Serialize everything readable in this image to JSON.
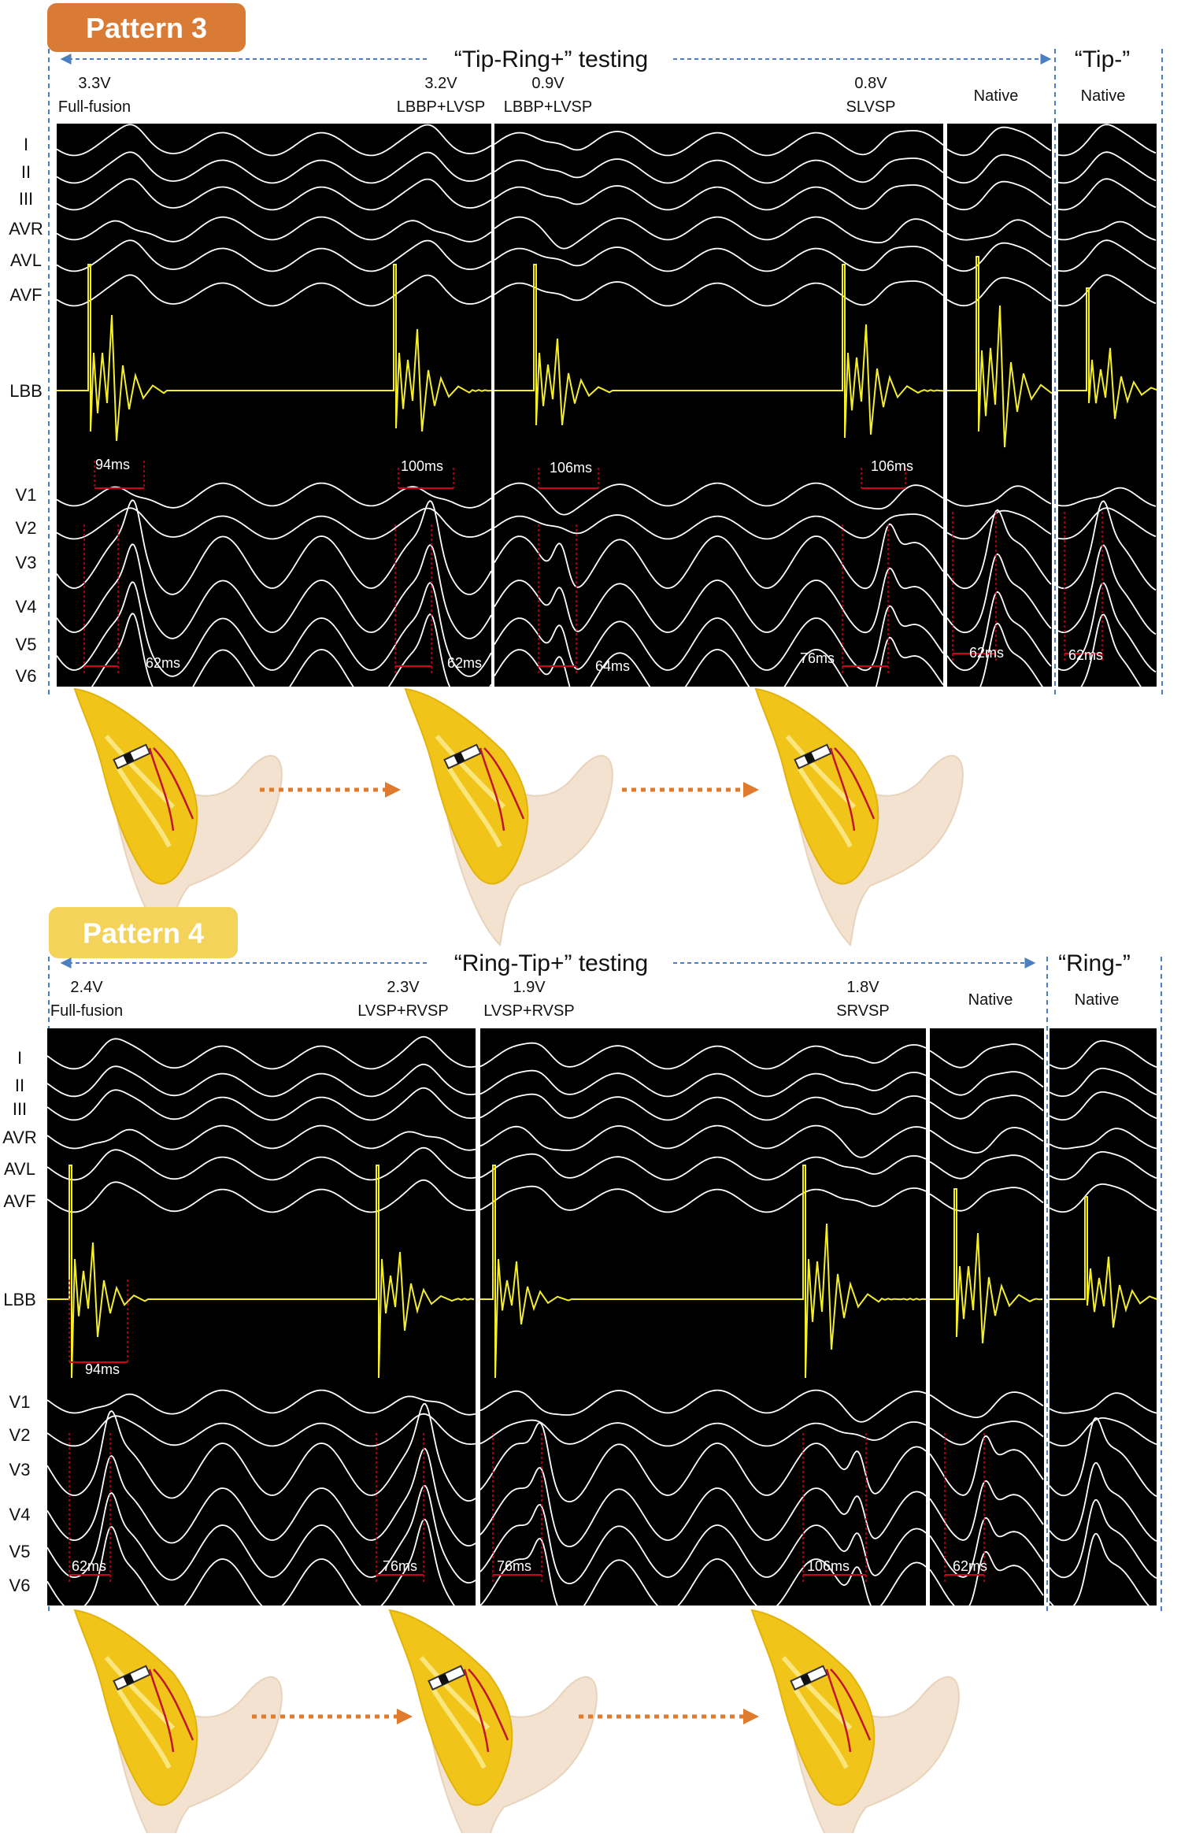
{
  "patterns": [
    {
      "badge": "Pattern 3",
      "badge_color": "#d97a35",
      "badge_text_color": "#ffffff",
      "testing_label": "“Tip-Ring+” testing",
      "alt_label": "“Tip-”",
      "columns": [
        {
          "voltage": "3.3V",
          "mode": "Full-fusion"
        },
        {
          "voltage": "3.2V",
          "mode": "LBBP+LVSP"
        },
        {
          "voltage": "0.9V",
          "mode": "LBBP+LVSP"
        },
        {
          "voltage": "0.8V",
          "mode": "SLVSP"
        },
        {
          "voltage": "",
          "mode": "Native"
        },
        {
          "voltage": "",
          "mode": "Native"
        }
      ],
      "intervals_upper": [
        "94ms",
        "100ms",
        "106ms",
        "106ms"
      ],
      "intervals_lower": [
        "62ms",
        "62ms",
        "64ms",
        "76ms",
        "62ms",
        "62ms"
      ]
    },
    {
      "badge": "Pattern 4",
      "badge_color": "#f3d35a",
      "badge_text_color": "#ffffff",
      "testing_label": "“Ring-Tip+” testing",
      "alt_label": "“Ring-”",
      "columns": [
        {
          "voltage": "2.4V",
          "mode": "Full-fusion"
        },
        {
          "voltage": "2.3V",
          "mode": "LVSP+RVSP"
        },
        {
          "voltage": "1.9V",
          "mode": "LVSP+RVSP"
        },
        {
          "voltage": "1.8V",
          "mode": "SRVSP"
        },
        {
          "voltage": "",
          "mode": "Native"
        },
        {
          "voltage": "",
          "mode": "Native"
        }
      ],
      "intervals_upper": [
        "94ms"
      ],
      "intervals_lower": [
        "62ms",
        "76ms",
        "76ms",
        "106ms",
        "62ms"
      ]
    }
  ],
  "leads": [
    "I",
    "II",
    "III",
    "AVR",
    "AVL",
    "AVF",
    "LBB",
    "V1",
    "V2",
    "V3",
    "V4",
    "V5",
    "V6"
  ],
  "colors": {
    "trace": "#ffffff",
    "lbb_trace": "#f4ee2a",
    "panel": "#000000",
    "marker": "#d0021b",
    "guide": "#4a7fc1",
    "arrow": "#e07a2c",
    "heart": "#f0c419"
  }
}
